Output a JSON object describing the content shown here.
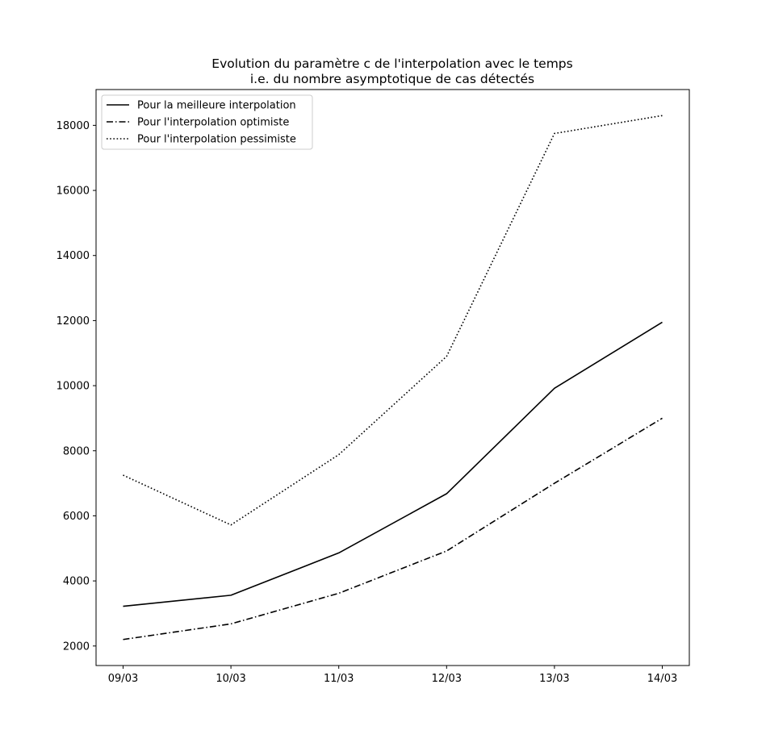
{
  "chart_data": {
    "type": "line",
    "title": "Evolution du paramètre c de l'interpolation avec le temps",
    "subtitle": "i.e. du nombre asymptotique de cas détectés",
    "xlabel": "",
    "ylabel": "",
    "categories": [
      "09/03",
      "10/03",
      "11/03",
      "12/03",
      "13/03",
      "14/03"
    ],
    "yticks": [
      "2000",
      "4000",
      "6000",
      "8000",
      "10000",
      "12000",
      "14000",
      "16000",
      "18000"
    ],
    "ylim": [
      1400,
      19100
    ],
    "grid": false,
    "legend_position": "top-left",
    "series": [
      {
        "name": "Pour la meilleure interpolation",
        "style": "solid",
        "color": "#000000",
        "values": [
          3220,
          3560,
          4860,
          6680,
          9920,
          11950
        ]
      },
      {
        "name": "Pour l'interpolation optimiste",
        "style": "dashdot",
        "color": "#000000",
        "values": [
          2200,
          2680,
          3620,
          4920,
          7000,
          9000
        ]
      },
      {
        "name": "Pour l'interpolation pessimiste",
        "style": "dotted",
        "color": "#000000",
        "values": [
          7250,
          5720,
          7880,
          10900,
          17750,
          18300
        ]
      }
    ]
  }
}
